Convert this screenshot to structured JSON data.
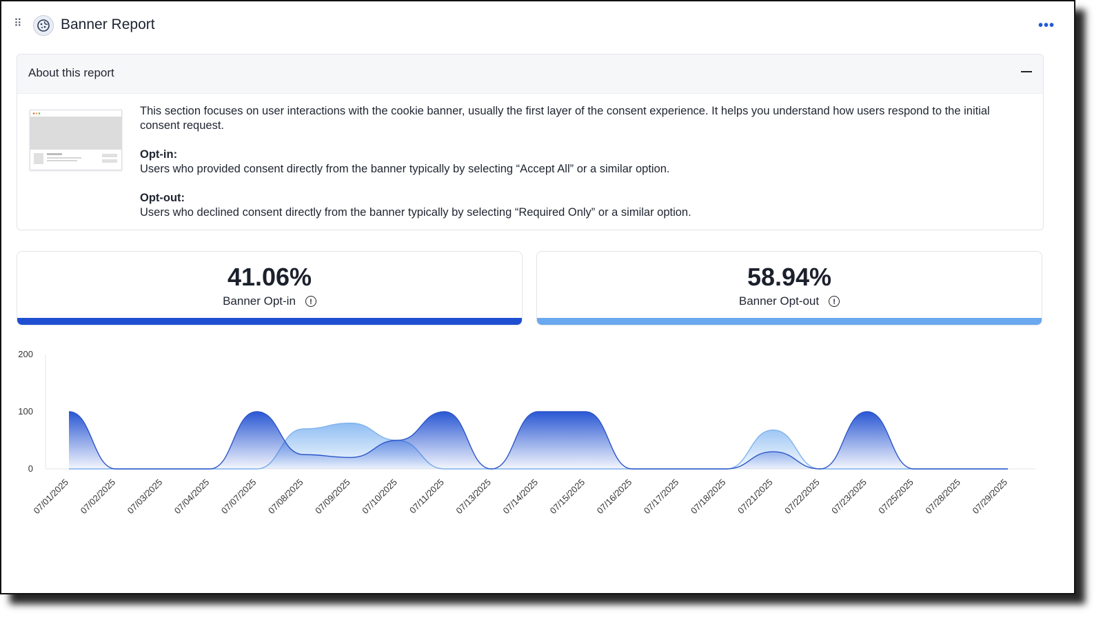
{
  "header": {
    "title": "Banner Report",
    "more_icon": "more-horizontal-icon",
    "drag_icon": "drag-handle-icon",
    "logo_icon": "cookie-icon"
  },
  "about": {
    "title": "About this report",
    "intro": "This section focuses on user interactions with the cookie banner, usually the first layer of the consent experience. It helps you understand how users respond to the initial consent request.",
    "optin_heading": "Opt-in:",
    "optin_text": "Users who provided consent directly from the banner typically by selecting “Accept All” or a similar option.",
    "optout_heading": "Opt-out:",
    "optout_text": "Users who declined consent directly from the banner typically by selecting “Required Only” or a similar option."
  },
  "cards": [
    {
      "value": "41.06%",
      "label": "Banner Opt-in",
      "color": "#1f4fd1"
    },
    {
      "value": "58.94%",
      "label": "Banner Opt-out",
      "color": "#6aa8ef"
    }
  ],
  "chart_data": {
    "type": "area",
    "categories": [
      "07/01/2025",
      "07/02/2025",
      "07/03/2025",
      "07/04/2025",
      "07/07/2025",
      "07/08/2025",
      "07/09/2025",
      "07/10/2025",
      "07/11/2025",
      "07/13/2025",
      "07/14/2025",
      "07/15/2025",
      "07/16/2025",
      "07/17/2025",
      "07/18/2025",
      "07/21/2025",
      "07/22/2025",
      "07/23/2025",
      "07/25/2025",
      "07/28/2025",
      "07/29/2025"
    ],
    "y_ticks": [
      0,
      100,
      200
    ],
    "ylim": [
      0,
      200
    ],
    "series": [
      {
        "name": "Banner Opt-in",
        "color": "#1f4fd1",
        "values": [
          100,
          0,
          0,
          0,
          100,
          25,
          20,
          50,
          100,
          0,
          100,
          100,
          0,
          0,
          0,
          30,
          0,
          100,
          0,
          0,
          0
        ]
      },
      {
        "name": "Banner Opt-out",
        "color": "#6aa8ef",
        "values": [
          0,
          0,
          0,
          0,
          0,
          70,
          80,
          50,
          0,
          0,
          0,
          0,
          0,
          0,
          0,
          68,
          0,
          0,
          0,
          0,
          0
        ]
      }
    ]
  }
}
